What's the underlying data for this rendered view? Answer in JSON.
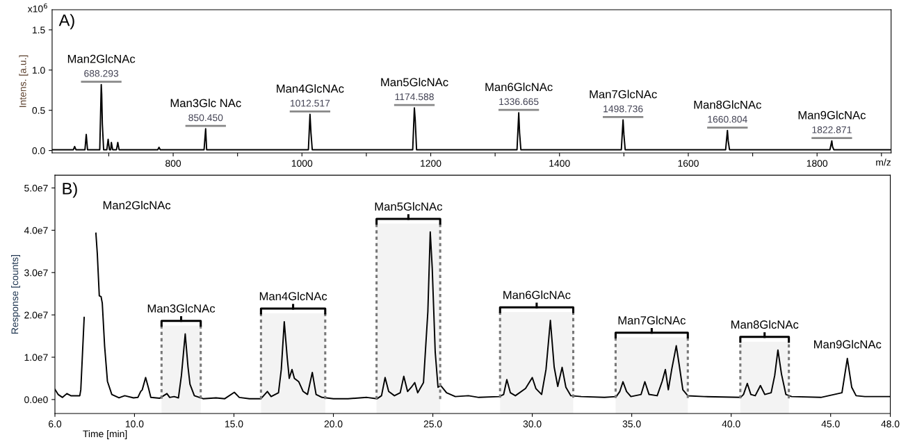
{
  "chart_data": [
    {
      "type": "line",
      "title": "A)",
      "ylabel": "Intens. [a.u.]",
      "xlabel": "m/z",
      "x": [
        612,
        645,
        647,
        649,
        663,
        665,
        667,
        686,
        688.3,
        689,
        690,
        692,
        697,
        699,
        701,
        703,
        704,
        706,
        712,
        714,
        716,
        776,
        778,
        780,
        848,
        850.45,
        852,
        1010,
        1012.5,
        1014,
        1016,
        1172,
        1174.6,
        1176,
        1178,
        1334,
        1336.7,
        1338,
        1340,
        1496,
        1498.7,
        1500,
        1502,
        1658,
        1660.8,
        1662,
        1664,
        1820,
        1822.9,
        1824,
        1826,
        1915
      ],
      "series": [
        {
          "color": "#000000",
          "values": [
            0.01,
            0.01,
            0.05,
            0.01,
            0.01,
            0.2,
            0.01,
            0.01,
            0.82,
            0.7,
            0.33,
            0.01,
            0.01,
            0.14,
            0.01,
            0.01,
            0.1,
            0.01,
            0.01,
            0.1,
            0.01,
            0.01,
            0.04,
            0.01,
            0.01,
            0.27,
            0.01,
            0.01,
            0.45,
            0.22,
            0.01,
            0.01,
            0.53,
            0.37,
            0.01,
            0.01,
            0.47,
            0.22,
            0.01,
            0.01,
            0.38,
            0.2,
            0.01,
            0.01,
            0.25,
            0.12,
            0.01,
            0.01,
            0.12,
            0.05,
            0.01,
            0.01
          ]
        }
      ],
      "xlim": [
        612,
        1915
      ],
      "xticks": [
        {
          "value": 700,
          "label": null
        },
        {
          "value": 800,
          "label": "800"
        },
        {
          "value": 900,
          "label": null
        },
        {
          "value": 1000,
          "label": "1000"
        },
        {
          "value": 1100,
          "label": null
        },
        {
          "value": 1200,
          "label": "1200"
        },
        {
          "value": 1300,
          "label": null
        },
        {
          "value": 1400,
          "label": "1400"
        },
        {
          "value": 1500,
          "label": null
        },
        {
          "value": 1600,
          "label": "1600"
        },
        {
          "value": 1700,
          "label": null
        },
        {
          "value": 1800,
          "label": "1800"
        },
        {
          "value": 1900,
          "label": null
        }
      ],
      "ylim": [
        -0.03,
        1.75
      ],
      "yticks": [
        {
          "value": 0,
          "label": "0.0"
        },
        {
          "value": 0.5,
          "label": "0.5"
        },
        {
          "value": 1.0,
          "label": "1.0"
        },
        {
          "value": 1.5,
          "label": "1.5"
        }
      ],
      "annotations": [
        "x10$^{6}$",
        {
          "text": "Man2GlcNAc",
          "x": 688.3,
          "y": 0.82
        },
        {
          "text": "688.293",
          "x": 688.3,
          "y": 0.82
        },
        {
          "text": "Man3Glc NAc",
          "x": 850.45,
          "y": 0.27
        },
        {
          "text": "850.450",
          "x": 850.45,
          "y": 0.27
        },
        {
          "text": "Man4GlcNAc",
          "x": 1012.5,
          "y": 0.45
        },
        {
          "text": "1012.517",
          "x": 1012.5,
          "y": 0.45
        },
        {
          "text": "Man5GlcNAc",
          "x": 1174.6,
          "y": 0.53
        },
        {
          "text": "1174.588",
          "x": 1174.6,
          "y": 0.53
        },
        {
          "text": "Man6GlcNAc",
          "x": 1336.7,
          "y": 0.47
        },
        {
          "text": "1336.665",
          "x": 1336.7,
          "y": 0.47
        },
        {
          "text": "Man7GlcNAc",
          "x": 1498.7,
          "y": 0.38
        },
        {
          "text": "1498.736",
          "x": 1498.7,
          "y": 0.38
        },
        {
          "text": "Man8GlcNAc",
          "x": 1660.8,
          "y": 0.25
        },
        {
          "text": "1660.804",
          "x": 1660.8,
          "y": 0.25
        },
        {
          "text": "Man9GlcNAc",
          "x": 1822.9,
          "y": 0.12
        },
        {
          "text": "1822.871",
          "x": 1822.9,
          "y": 0.12
        }
      ],
      "grid": false,
      "legend": false
    },
    {
      "type": "line",
      "title": "B)",
      "ylabel": "Response [counts]",
      "xlabel": "Time [min]",
      "x": [
        6.0,
        6.16,
        6.38,
        6.6,
        6.8,
        7.25,
        7.3,
        7.47,
        7.56,
        8.05,
        8.06,
        8.13,
        8.23,
        8.32,
        8.38,
        8.5,
        8.64,
        8.86,
        9.22,
        9.51,
        9.95,
        10.17,
        10.31,
        10.39,
        10.56,
        10.71,
        10.82,
        11.26,
        11.63,
        11.77,
        11.99,
        12.21,
        12.36,
        12.55,
        12.69,
        12.79,
        13.01,
        13.45,
        14.1,
        14.54,
        15.02,
        15.27,
        15.78,
        16.36,
        16.68,
        16.87,
        17.24,
        17.38,
        17.53,
        17.68,
        17.78,
        17.92,
        18.04,
        18.26,
        18.48,
        18.7,
        18.94,
        19.13,
        19.43,
        20.0,
        20.74,
        21.68,
        22.2,
        22.42,
        22.6,
        22.78,
        23.07,
        23.36,
        23.54,
        23.73,
        23.92,
        24.09,
        24.24,
        24.53,
        24.75,
        24.87,
        24.97,
        25.12,
        25.26,
        25.4,
        25.69,
        26.13,
        26.79,
        27.31,
        28.34,
        28.56,
        28.72,
        28.9,
        29.15,
        29.66,
        30.0,
        30.18,
        30.47,
        30.69,
        30.91,
        31.1,
        31.28,
        31.5,
        31.69,
        31.94,
        32.46,
        33.63,
        34.22,
        34.4,
        34.56,
        34.74,
        34.96,
        35.47,
        35.66,
        35.87,
        36.28,
        36.53,
        36.69,
        36.84,
        37.01,
        37.24,
        37.38,
        37.57,
        37.82,
        38.63,
        40.47,
        40.62,
        40.81,
        40.99,
        41.21,
        41.47,
        41.69,
        42.01,
        42.19,
        42.35,
        42.53,
        42.75,
        43.04,
        44.51,
        45.57,
        45.84,
        46.06,
        46.28,
        46.72,
        48.0
      ],
      "series": [
        {
          "color": "#000000",
          "values": [
            2400000.0,
            1200000.0,
            500000.0,
            1400000.0,
            900000.0,
            900000.0,
            2300000.0,
            19400000.0,
            null,
            null,
            39300000.0,
            34500000.0,
            24500000.0,
            24300000.0,
            22800000.0,
            12500000.0,
            4300000.0,
            1200000.0,
            400000.0,
            900000.0,
            400000.0,
            500000.0,
            1900000.0,
            2300000.0,
            5200000.0,
            2600000.0,
            500000.0,
            300000.0,
            1400000.0,
            500000.0,
            700000.0,
            400000.0,
            5700000.0,
            15500000.0,
            7700000.0,
            3600000.0,
            900000.0,
            200000.0,
            400000.0,
            200000.0,
            1700000.0,
            500000.0,
            200000.0,
            200000.0,
            1900000.0,
            700000.0,
            1600000.0,
            7100000.0,
            18400000.0,
            9800000.0,
            5000000.0,
            7100000.0,
            5000000.0,
            4200000.0,
            1900000.0,
            1200000.0,
            6400000.0,
            1200000.0,
            500000.0,
            200000.0,
            200000.0,
            500000.0,
            200000.0,
            900000.0,
            5200000.0,
            1900000.0,
            900000.0,
            1600000.0,
            5500000.0,
            1900000.0,
            2900000.0,
            4000000.0,
            1600000.0,
            4000000.0,
            20800000.0,
            39600000.0,
            31000000.0,
            11200000.0,
            2900000.0,
            3300000.0,
            1600000.0,
            700000.0,
            900000.0,
            500000.0,
            700000.0,
            1200000.0,
            4700000.0,
            1600000.0,
            900000.0,
            2600000.0,
            5200000.0,
            2600000.0,
            1200000.0,
            7100000.0,
            18700000.0,
            7700000.0,
            3100000.0,
            7600000.0,
            2900000.0,
            900000.0,
            700000.0,
            500000.0,
            700000.0,
            1900000.0,
            4200000.0,
            1900000.0,
            700000.0,
            1200000.0,
            4200000.0,
            1200000.0,
            900000.0,
            4300000.0,
            7100000.0,
            2300000.0,
            7100000.0,
            12700000.0,
            8400000.0,
            2300000.0,
            900000.0,
            700000.0,
            500000.0,
            1200000.0,
            3800000.0,
            1200000.0,
            900000.0,
            3300000.0,
            1200000.0,
            1600000.0,
            5700000.0,
            11700000.0,
            6000000.0,
            1200000.0,
            700000.0,
            500000.0,
            1600000.0,
            9700000.0,
            2900000.0,
            900000.0,
            700000.0,
            700000.0
          ]
        }
      ],
      "xlim": [
        6.0,
        48.0
      ],
      "xticks": [
        {
          "value": 6,
          "label": "6.0"
        },
        {
          "value": 10,
          "label": "10.0"
        },
        {
          "value": 15,
          "label": "15.0"
        },
        {
          "value": 20,
          "label": "20.0"
        },
        {
          "value": 25,
          "label": "25.0"
        },
        {
          "value": 30,
          "label": "30.0"
        },
        {
          "value": 35,
          "label": "35.0"
        },
        {
          "value": 40,
          "label": "40.0"
        },
        {
          "value": 45,
          "label": "45.0"
        },
        {
          "value": 48,
          "label": "48.0"
        }
      ],
      "ylim": [
        -3300000.0,
        53000000.0
      ],
      "yticks": [
        {
          "value": 0,
          "label": "0.0e0"
        },
        {
          "value": 10000000.0,
          "label": "1.0e7"
        },
        {
          "value": 20000000.0,
          "label": "2.0e7"
        },
        {
          "value": 30000000.0,
          "label": "3.0e7"
        },
        {
          "value": 40000000.0,
          "label": "4.0e7"
        },
        {
          "value": 50000000.0,
          "label": "5.0e7"
        }
      ],
      "bands": [
        {
          "axis": "x",
          "from": 11.36,
          "to": 13.33,
          "label": "Man3GlcNAc"
        },
        {
          "axis": "x",
          "from": 16.36,
          "to": 19.59,
          "label": "Man4GlcNAc"
        },
        {
          "axis": "x",
          "from": 22.17,
          "to": 25.37,
          "label": "Man5GlcNAc"
        },
        {
          "axis": "x",
          "from": 28.38,
          "to": 32.06,
          "label": "Man6GlcNAc"
        },
        {
          "axis": "x",
          "from": 34.19,
          "to": 37.82,
          "label": "Man7GlcNAc"
        },
        {
          "axis": "x",
          "from": 40.46,
          "to": 42.9,
          "label": "Man8GlcNAc"
        }
      ],
      "annotations": [
        "Man2GlcNAc",
        {
          "text": "Man9GlcNAc",
          "x": 45.84,
          "y": 9700000.0
        }
      ],
      "grid": false,
      "legend": false
    }
  ]
}
